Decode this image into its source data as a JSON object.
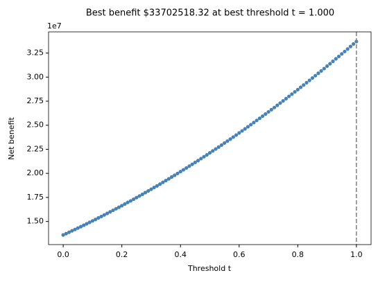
{
  "chart_data": {
    "type": "scatter",
    "title": "Best benefit $33702518.32 at best threshold t = 1.000",
    "xlabel": "Threshold t",
    "ylabel": "Net benefit",
    "y_offset_label": "1e7",
    "color": "#4682b4",
    "best_threshold": 1.0,
    "best_line_color": "#808080",
    "x": [
      0,
      0.01,
      0.02,
      0.03,
      0.04,
      0.05,
      0.06,
      0.07,
      0.08,
      0.09,
      0.1,
      0.11,
      0.12,
      0.13,
      0.14,
      0.15,
      0.16,
      0.17,
      0.18,
      0.19,
      0.2,
      0.21,
      0.22,
      0.23,
      0.24,
      0.25,
      0.26,
      0.27,
      0.28,
      0.29,
      0.3,
      0.31,
      0.32,
      0.33,
      0.34,
      0.35,
      0.36,
      0.37,
      0.38,
      0.39,
      0.4,
      0.41,
      0.42,
      0.43,
      0.44,
      0.45,
      0.46,
      0.47,
      0.48,
      0.49,
      0.5,
      0.51,
      0.52,
      0.53,
      0.54,
      0.55,
      0.56,
      0.57,
      0.58,
      0.59,
      0.6,
      0.61,
      0.62,
      0.63,
      0.64,
      0.65,
      0.66,
      0.67,
      0.68,
      0.69,
      0.7,
      0.71,
      0.72,
      0.73,
      0.74,
      0.75,
      0.76,
      0.77,
      0.78,
      0.79,
      0.8,
      0.81,
      0.82,
      0.83,
      0.84,
      0.85,
      0.86,
      0.87,
      0.88,
      0.89,
      0.9,
      0.91,
      0.92,
      0.93,
      0.94,
      0.95,
      0.96,
      0.97,
      0.98,
      0.99,
      1.0
    ],
    "values": [
      13600000,
      13740000,
      13880000,
      14030000,
      14170000,
      14320000,
      14460000,
      14610000,
      14760000,
      14910000,
      15060000,
      15210000,
      15370000,
      15520000,
      15680000,
      15840000,
      16000000,
      16160000,
      16320000,
      16480000,
      16640000,
      16810000,
      16980000,
      17140000,
      17310000,
      17480000,
      17650000,
      17820000,
      18000000,
      18170000,
      18350000,
      18530000,
      18700000,
      18880000,
      19070000,
      19250000,
      19430000,
      19620000,
      19800000,
      19990000,
      20180000,
      20370000,
      20560000,
      20750000,
      20940000,
      21140000,
      21330000,
      21530000,
      21730000,
      21920000,
      22130000,
      22330000,
      22530000,
      22730000,
      22940000,
      23150000,
      23350000,
      23560000,
      23770000,
      23980000,
      24200000,
      24410000,
      24620000,
      24840000,
      25060000,
      25280000,
      25500000,
      25720000,
      25940000,
      26160000,
      26390000,
      26620000,
      26840000,
      27070000,
      27300000,
      27530000,
      27760000,
      28000000,
      28230000,
      28470000,
      28700000,
      28940000,
      29180000,
      29420000,
      29660000,
      29910000,
      30150000,
      30400000,
      30640000,
      30890000,
      31140000,
      31390000,
      31640000,
      31900000,
      32150000,
      32410000,
      32660000,
      32920000,
      33180000,
      33440000,
      33702518.32
    ],
    "xlim": [
      -0.05,
      1.05
    ],
    "ylim": [
      12600000,
      34700000
    ],
    "xticks": [
      {
        "value": 0,
        "label": "0.0"
      },
      0.2,
      0.4,
      0.6,
      0.8,
      {
        "value": 1,
        "label": "1.0"
      }
    ],
    "yticks": [
      {
        "value": 15000000,
        "label": "1.50"
      },
      {
        "value": 17500000,
        "label": "1.75"
      },
      {
        "value": 20000000,
        "label": "2.00"
      },
      {
        "value": 22500000,
        "label": "2.25"
      },
      {
        "value": 25000000,
        "label": "2.50"
      },
      {
        "value": 27500000,
        "label": "2.75"
      },
      {
        "value": 30000000,
        "label": "3.00"
      },
      {
        "value": 32500000,
        "label": "3.25"
      }
    ]
  }
}
